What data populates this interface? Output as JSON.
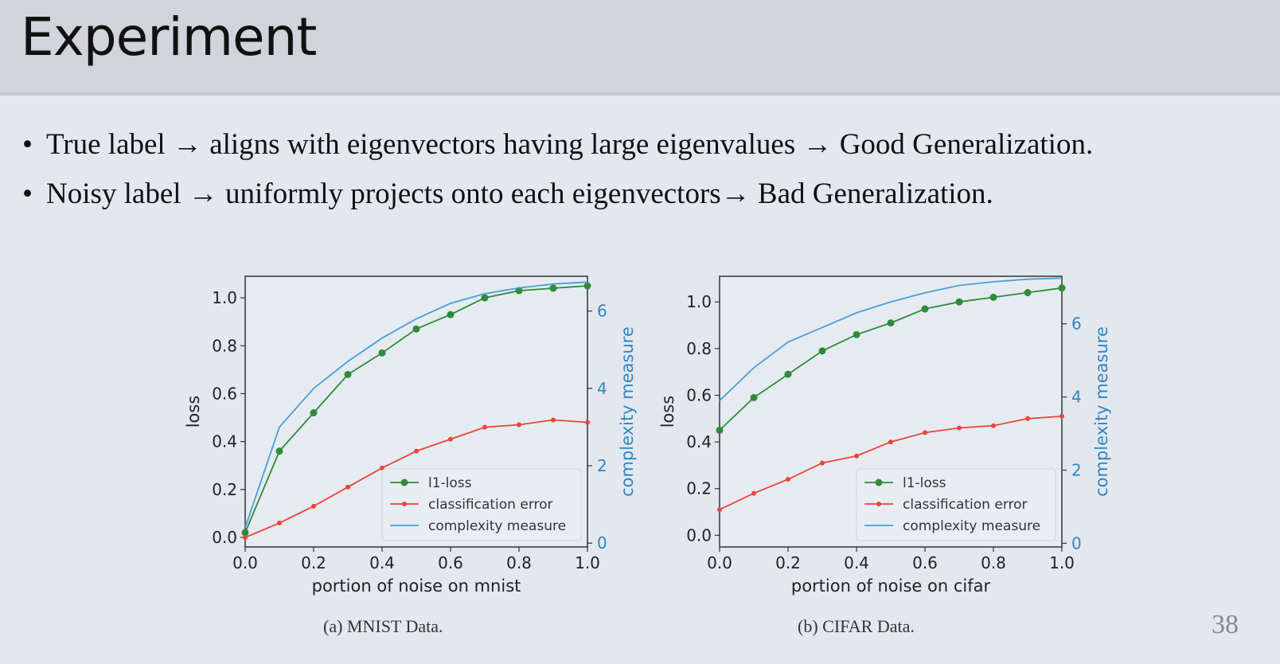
{
  "slide": {
    "title": "Experiment",
    "page_number": "38",
    "bullets": [
      "True label → aligns with eigenvectors having large eigenvalues → Good Generalization.",
      "Noisy label → uniformly projects onto each eigenvectors→ Bad Generalization."
    ],
    "bullet_marker": "•"
  },
  "captions": [
    "(a) MNIST Data.",
    "(b) CIFAR Data."
  ],
  "colors": {
    "l1_loss": "#2e8b3a",
    "classification_error": "#e8463a",
    "complexity_measure": "#4a9fd8",
    "right_axis": "#2e86c1"
  },
  "chart_data": [
    {
      "type": "line",
      "xlabel": "portion of noise on mnist",
      "ylabel": "loss",
      "y2label": "complexity measure",
      "xlim": [
        0.0,
        1.0
      ],
      "ylim": [
        -0.04,
        1.09
      ],
      "y2lim": [
        -0.1,
        6.9
      ],
      "xticks": [
        "0.0",
        "0.2",
        "0.4",
        "0.6",
        "0.8",
        "1.0"
      ],
      "yticks": [
        "0.0",
        "0.2",
        "0.4",
        "0.6",
        "0.8",
        "1.0"
      ],
      "y2ticks": [
        "0",
        "2",
        "4",
        "6"
      ],
      "legend_position": "lower-right",
      "x": [
        0.0,
        0.1,
        0.2,
        0.3,
        0.4,
        0.5,
        0.6,
        0.7,
        0.8,
        0.9,
        1.0
      ],
      "series": [
        {
          "name": "l1-loss",
          "axis": "left",
          "marker": "circle",
          "color_key": "l1_loss",
          "values": [
            0.02,
            0.36,
            0.52,
            0.68,
            0.77,
            0.87,
            0.93,
            1.0,
            1.03,
            1.04,
            1.05
          ]
        },
        {
          "name": "classification error",
          "axis": "left",
          "marker": "small",
          "color_key": "classification_error",
          "values": [
            0.0,
            0.06,
            0.13,
            0.21,
            0.29,
            0.36,
            0.41,
            0.46,
            0.47,
            0.49,
            0.48
          ]
        },
        {
          "name": "complexity measure",
          "axis": "right",
          "marker": "none",
          "color_key": "complexity_measure",
          "values": [
            0.4,
            3.0,
            4.0,
            4.7,
            5.3,
            5.8,
            6.2,
            6.45,
            6.6,
            6.7,
            6.75
          ]
        }
      ]
    },
    {
      "type": "line",
      "xlabel": "portion of noise on cifar",
      "ylabel": "loss",
      "y2label": "complexity measure",
      "xlim": [
        0.0,
        1.0
      ],
      "ylim": [
        -0.05,
        1.11
      ],
      "y2lim": [
        -0.1,
        7.3
      ],
      "xticks": [
        "0.0",
        "0.2",
        "0.4",
        "0.6",
        "0.8",
        "1.0"
      ],
      "yticks": [
        "0.0",
        "0.2",
        "0.4",
        "0.6",
        "0.8",
        "1.0"
      ],
      "y2ticks": [
        "0",
        "2",
        "4",
        "6"
      ],
      "legend_position": "lower-right",
      "x": [
        0.0,
        0.1,
        0.2,
        0.3,
        0.4,
        0.5,
        0.6,
        0.7,
        0.8,
        0.9,
        1.0
      ],
      "series": [
        {
          "name": "l1-loss",
          "axis": "left",
          "marker": "circle",
          "color_key": "l1_loss",
          "values": [
            0.45,
            0.59,
            0.69,
            0.79,
            0.86,
            0.91,
            0.97,
            1.0,
            1.02,
            1.04,
            1.06
          ]
        },
        {
          "name": "classification error",
          "axis": "left",
          "marker": "small",
          "color_key": "classification_error",
          "values": [
            0.11,
            0.18,
            0.24,
            0.31,
            0.34,
            0.4,
            0.44,
            0.46,
            0.47,
            0.5,
            0.51
          ]
        },
        {
          "name": "complexity measure",
          "axis": "right",
          "marker": "none",
          "color_key": "complexity_measure",
          "values": [
            3.9,
            4.8,
            5.5,
            5.9,
            6.3,
            6.6,
            6.85,
            7.05,
            7.15,
            7.22,
            7.25
          ]
        }
      ]
    }
  ]
}
